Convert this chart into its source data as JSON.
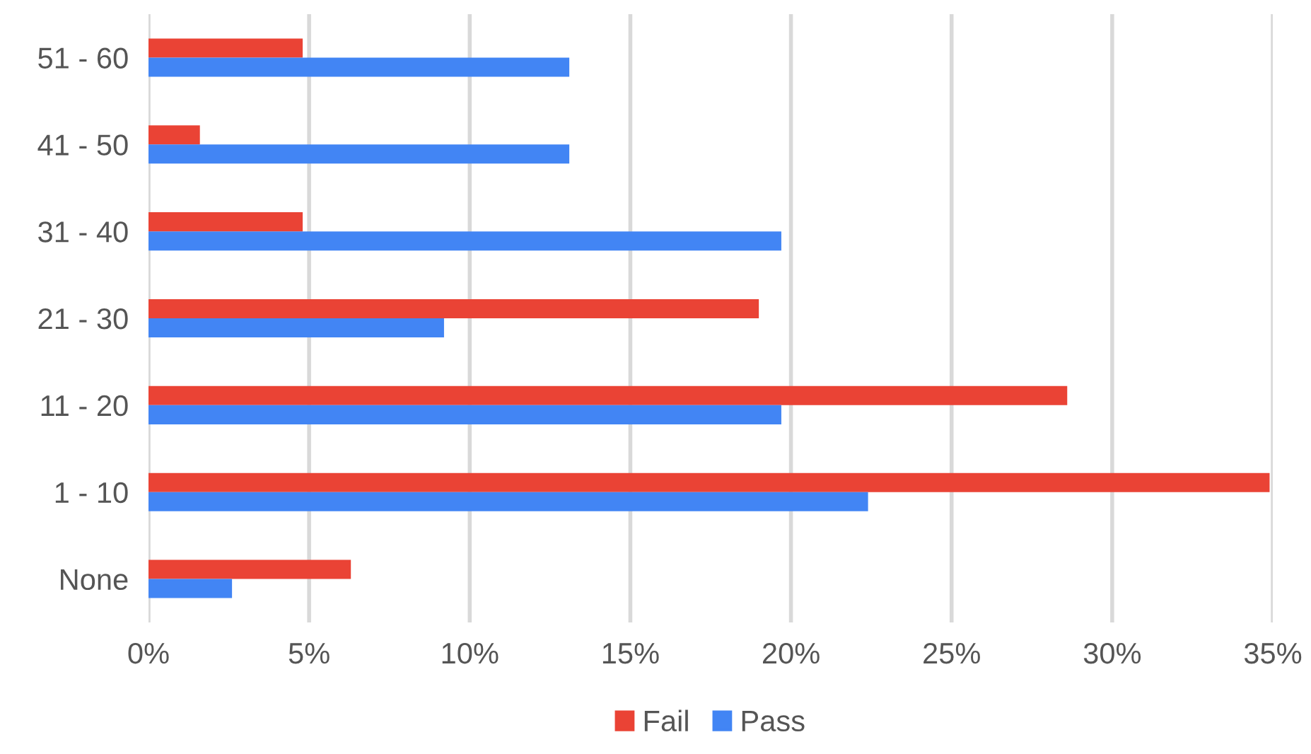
{
  "chart_data": {
    "type": "bar",
    "orientation": "horizontal",
    "categories": [
      "51 - 60",
      "41 - 50",
      "31 - 40",
      "21 - 30",
      "11 - 20",
      "1 - 10",
      "None"
    ],
    "series": [
      {
        "name": "Fail",
        "color": "#ea4335",
        "values": [
          4.8,
          1.6,
          4.8,
          19.0,
          28.6,
          34.9,
          6.3
        ]
      },
      {
        "name": "Pass",
        "color": "#4285f4",
        "values": [
          13.1,
          13.1,
          19.7,
          9.2,
          19.7,
          22.4,
          2.6
        ]
      }
    ],
    "xlim": [
      0,
      35
    ],
    "xticks": [
      {
        "value": 0,
        "label": "0%"
      },
      {
        "value": 5,
        "label": "5%"
      },
      {
        "value": 10,
        "label": "10%"
      },
      {
        "value": 15,
        "label": "15%"
      },
      {
        "value": 20,
        "label": "20%"
      },
      {
        "value": 25,
        "label": "25%"
      },
      {
        "value": 30,
        "label": "30%"
      },
      {
        "value": 35,
        "label": "35%"
      }
    ],
    "grid": "x",
    "legend": "bottom"
  }
}
